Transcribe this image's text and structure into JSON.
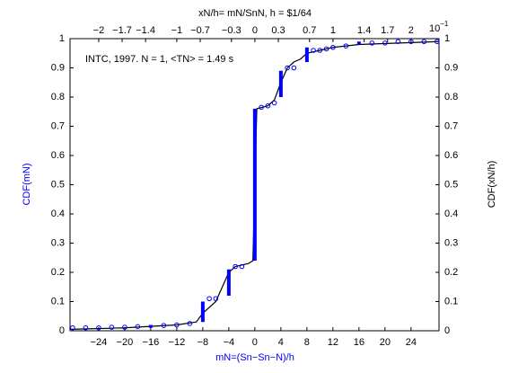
{
  "chart_data": {
    "type": "cdf",
    "annotation": "INTC, 1997. N = 1, <TN> = 1.49 s",
    "xlabel": "mN=(Sn−Sn−N)/h",
    "ylabel": "CDF(mN)",
    "y2label": "CDF(xN/h)",
    "x2label": "xN/h= mN/SnN, h = $1/64",
    "x2_multiplier": {
      "base": "10",
      "exponent": "−1"
    },
    "xlim": [
      -28.4,
      28.3
    ],
    "xticks": [
      {
        "value": -24,
        "label": "−24"
      },
      {
        "value": -20,
        "label": "−20"
      },
      {
        "value": -16,
        "label": "−16"
      },
      {
        "value": -12,
        "label": "−12"
      },
      {
        "value": -8,
        "label": "−8"
      },
      {
        "value": -4,
        "label": "−4"
      },
      0,
      4,
      8,
      12,
      16,
      20,
      24
    ],
    "x2lim": [
      -2.367,
      2.358
    ],
    "x2ticks": [
      {
        "value": -2,
        "label": "−2"
      },
      {
        "value": -1.7,
        "label": "−1.7"
      },
      {
        "value": -1.4,
        "label": "−1.4"
      },
      {
        "value": -1,
        "label": "−1"
      },
      {
        "value": -0.7,
        "label": "−0.7"
      },
      {
        "value": -0.3,
        "label": "−0.3"
      },
      0,
      0.3,
      0.7,
      1,
      1.4,
      1.7,
      2
    ],
    "ylim": [
      0,
      1
    ],
    "yticks": [
      0,
      0.1,
      0.2,
      0.3,
      0.4,
      0.5,
      0.6,
      0.7,
      0.8,
      0.9,
      1
    ],
    "blue_color": "#0000ff",
    "line_color": "#000000",
    "steps": {
      "x": [
        -16,
        -8,
        -4,
        0,
        4,
        8,
        16
      ],
      "low": [
        0.01,
        0.03,
        0.12,
        0.24,
        0.8,
        0.92,
        0.98
      ],
      "high": [
        0.02,
        0.1,
        0.21,
        0.76,
        0.89,
        0.97,
        0.99
      ]
    },
    "circles": {
      "x": [
        -28,
        -26,
        -24,
        -22,
        -20,
        -18,
        -14,
        -12,
        -10,
        -7,
        -6,
        -3,
        -2,
        1,
        2,
        3,
        5,
        6,
        9,
        10,
        11,
        12,
        14,
        18,
        20,
        22,
        24,
        26,
        28
      ],
      "y": [
        0.01,
        0.01,
        0.01,
        0.012,
        0.012,
        0.014,
        0.018,
        0.02,
        0.025,
        0.11,
        0.11,
        0.22,
        0.22,
        0.765,
        0.77,
        0.78,
        0.9,
        0.9,
        0.96,
        0.96,
        0.965,
        0.97,
        0.975,
        0.985,
        0.985,
        0.99,
        0.99,
        0.99,
        0.99
      ]
    },
    "line": {
      "x": [
        -28.4,
        -20,
        -12,
        -9,
        -8,
        -6,
        -5,
        -4,
        -3,
        -1,
        -0.3,
        0,
        0.3,
        2,
        3,
        4,
        5,
        6,
        7,
        8,
        10,
        12,
        16,
        28.3
      ],
      "y": [
        0.005,
        0.01,
        0.02,
        0.03,
        0.06,
        0.1,
        0.15,
        0.2,
        0.22,
        0.23,
        0.24,
        0.5,
        0.76,
        0.77,
        0.79,
        0.85,
        0.9,
        0.92,
        0.93,
        0.95,
        0.96,
        0.97,
        0.98,
        0.99
      ]
    }
  }
}
